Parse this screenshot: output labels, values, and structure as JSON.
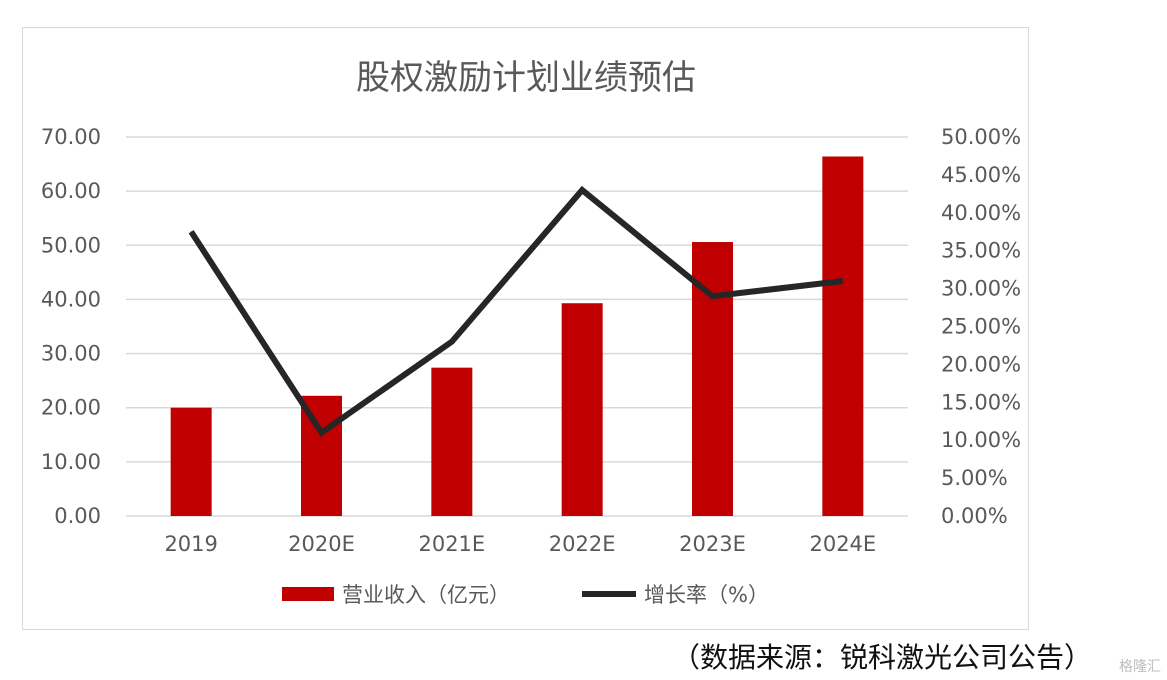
{
  "chart_data": {
    "type": "bar",
    "title": "股权激励计划业绩预估",
    "categories": [
      "2019",
      "2020E",
      "2021E",
      "2022E",
      "2023E",
      "2024E"
    ],
    "series": [
      {
        "name": "营业收入（亿元）",
        "kind": "bar",
        "axis": "left",
        "color": "#c00000",
        "values": [
          20.0,
          22.2,
          27.4,
          39.3,
          50.6,
          66.4
        ]
      },
      {
        "name": "增长率（%）",
        "kind": "line",
        "axis": "right",
        "color": "#262626",
        "values": [
          37.5,
          11.0,
          23.0,
          43.0,
          29.0,
          31.0
        ]
      }
    ],
    "left_axis": {
      "ylim": [
        0,
        70
      ],
      "ticks": [
        0,
        10,
        20,
        30,
        40,
        50,
        60,
        70
      ],
      "tick_labels": [
        "0.00",
        "10.00",
        "20.00",
        "30.00",
        "40.00",
        "50.00",
        "60.00",
        "70.00"
      ]
    },
    "right_axis": {
      "ylim": [
        0,
        50
      ],
      "ticks": [
        0,
        5,
        10,
        15,
        20,
        25,
        30,
        35,
        40,
        45,
        50
      ],
      "tick_labels": [
        "0.00%",
        "5.00%",
        "10.00%",
        "15.00%",
        "20.00%",
        "25.00%",
        "30.00%",
        "35.00%",
        "40.00%",
        "45.00%",
        "50.00%"
      ]
    },
    "grid": true,
    "legend_position": "bottom"
  },
  "source_note": "（数据来源：锐科激光公司公告）",
  "watermark": "格隆汇"
}
